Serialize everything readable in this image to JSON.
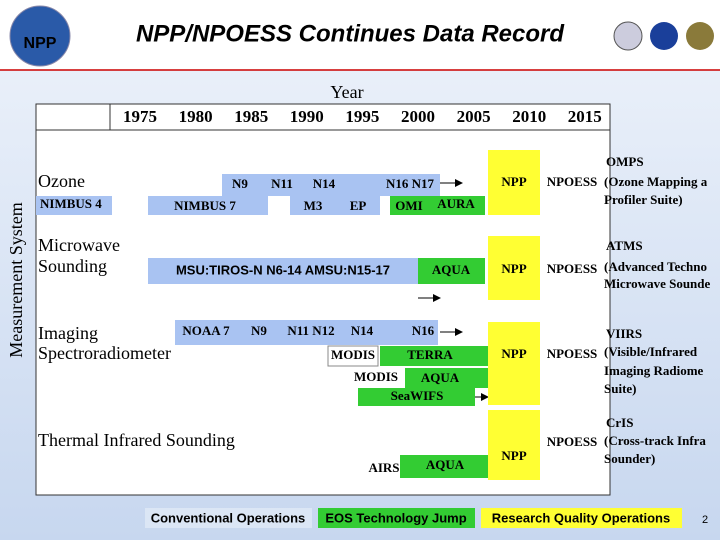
{
  "header": {
    "title": "NPP/NPOESS Continues Data Record",
    "logo": "NPP"
  },
  "axis": {
    "title": "Year",
    "years": [
      1975,
      1980,
      1985,
      1990,
      1995,
      2000,
      2005,
      2010,
      2015
    ],
    "side_label": "Measurement System"
  },
  "rows": [
    {
      "label": [
        "Ozone"
      ],
      "items": [
        "NIMBUS 4",
        "NIMBUS 7",
        "M3",
        "EP",
        "OMI",
        "AURA",
        "N9",
        "N11",
        "N14",
        "N16 N17"
      ],
      "future": [
        "NPP",
        "NPOESS"
      ],
      "instrument": [
        "OMPS",
        "(Ozone Mapping a",
        "Profiler Suite)"
      ]
    },
    {
      "label": [
        "Microwave",
        "Sounding"
      ],
      "items": [
        "MSU:TIROS-N N6-14 AMSU:N15-17",
        "AQUA"
      ],
      "future": [
        "NPP",
        "NPOESS"
      ],
      "instrument": [
        "ATMS",
        "(Advanced Techno",
        "Microwave Sounde"
      ]
    },
    {
      "label": [
        "Imaging",
        "Spectroradiometer"
      ],
      "items": [
        "NOAA 7",
        "N9",
        "N11 N12",
        "N14",
        "N16",
        "MODIS",
        "TERRA",
        "MODIS",
        "AQUA",
        "SeaWIFS"
      ],
      "future": [
        "NPP",
        "NPOESS"
      ],
      "instrument": [
        "VIIRS",
        "(Visible/Infrared",
        "Imaging Radiome",
        "Suite)"
      ]
    },
    {
      "label": [
        "Thermal Infrared Sounding"
      ],
      "items": [
        "AIRS",
        "AQUA"
      ],
      "future": [
        "NPP",
        "NPOESS"
      ],
      "instrument": [
        "CrIS",
        "(Cross-track Infra",
        "Sounder)"
      ]
    }
  ],
  "footer": {
    "legend": [
      "Conventional Operations",
      "EOS Technology Jump",
      "Research Quality Operations"
    ],
    "page": 2
  }
}
